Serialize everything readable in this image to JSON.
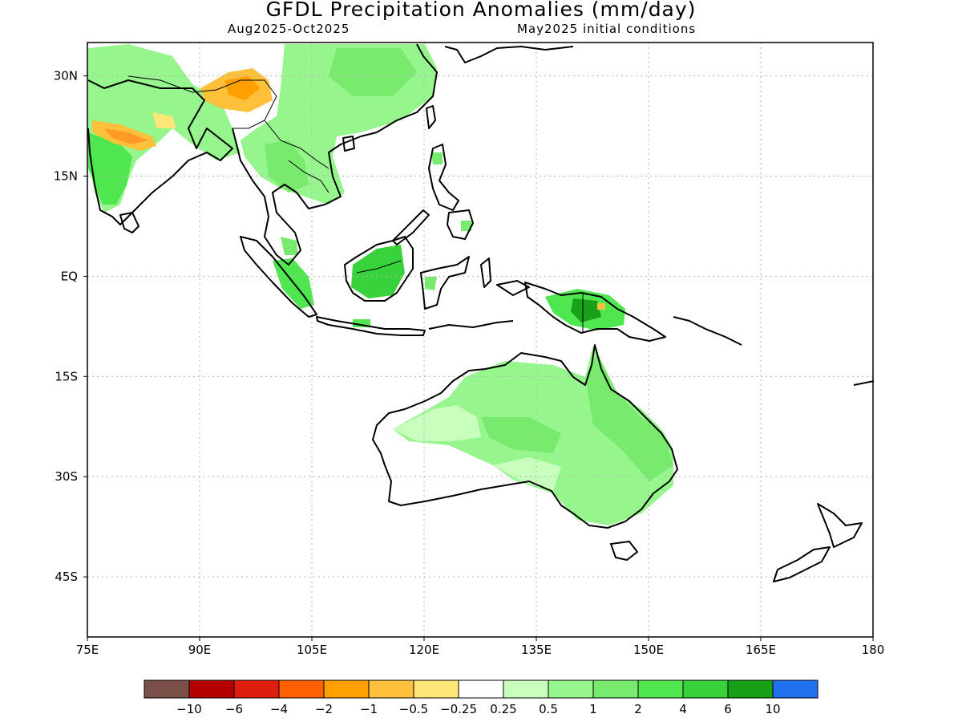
{
  "header": {
    "title": "GFDL Precipitation Anomalies (mm/day)",
    "period": "Aug2025-Oct2025",
    "conditions": "May2025 initial conditions"
  },
  "map": {
    "lon_range": [
      75,
      180
    ],
    "lat_range": [
      -54,
      35
    ],
    "lon_ticks": [
      "75E",
      "90E",
      "105E",
      "120E",
      "135E",
      "150E",
      "165E",
      "180"
    ],
    "lat_ticks": [
      "30N",
      "15N",
      "EQ",
      "15S",
      "30S",
      "45S"
    ],
    "lon_tick_values": [
      75,
      90,
      105,
      120,
      135,
      150,
      165,
      180
    ],
    "lat_tick_values": [
      30,
      15,
      0,
      -15,
      -30,
      -45
    ],
    "grid": "dotted"
  },
  "colorbar": {
    "colors": [
      "#7a5048",
      "#b40000",
      "#e01e10",
      "#ff6000",
      "#ffa000",
      "#ffc03c",
      "#ffe678",
      "#ffffff",
      "#c8ffbe",
      "#96f58c",
      "#78eb6e",
      "#50e650",
      "#37d23c",
      "#19a019",
      "#2070f0"
    ],
    "labels": [
      "-10",
      "-6",
      "-4",
      "-2",
      "-1",
      "-0.5",
      "-0.25",
      "0.25",
      "0.5",
      "1",
      "2",
      "4",
      "6",
      "10"
    ]
  }
}
